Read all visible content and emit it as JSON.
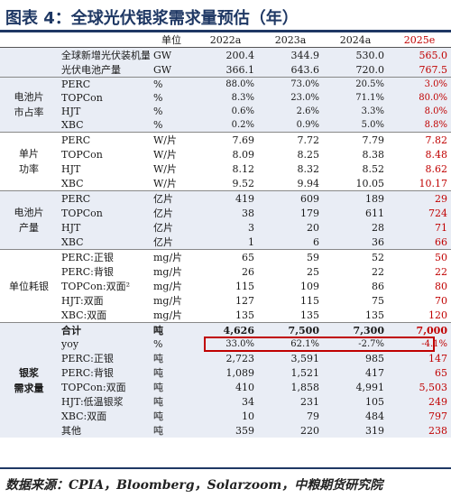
{
  "title": "图表 4：全球光伏银浆需求量预估（年）",
  "header": {
    "col0": "",
    "col1": "",
    "unit": "单位",
    "y1": "2022a",
    "y2": "2023a",
    "y3": "2024a",
    "y4": "2025e"
  },
  "rows": [
    {
      "group": "",
      "item": "全球新增光伏装机量¹",
      "unit": "GW",
      "v": [
        "200.4",
        "344.9",
        "530.0",
        "565.0"
      ]
    },
    {
      "group": "",
      "item": "光伏电池产量",
      "unit": "GW",
      "v": [
        "366.1",
        "643.6",
        "720.0",
        "767.5"
      ]
    },
    {
      "group": "电池片\n市占率",
      "item": "PERC",
      "unit": "%",
      "v": [
        "88.0%",
        "73.0%",
        "20.5%",
        "3.0%"
      ],
      "small": true
    },
    {
      "group": "",
      "item": "TOPCon",
      "unit": "%",
      "v": [
        "8.3%",
        "23.0%",
        "71.1%",
        "80.0%"
      ],
      "small": true
    },
    {
      "group": "",
      "item": "HJT",
      "unit": "%",
      "v": [
        "0.6%",
        "2.6%",
        "3.3%",
        "8.0%"
      ],
      "small": true
    },
    {
      "group": "",
      "item": "XBC",
      "unit": "%",
      "v": [
        "0.2%",
        "0.9%",
        "5.0%",
        "8.8%"
      ],
      "small": true
    },
    {
      "group": "单片\n功率",
      "item": "PERC",
      "unit": "W/片",
      "v": [
        "7.69",
        "7.72",
        "7.79",
        "7.82"
      ]
    },
    {
      "group": "",
      "item": "TOPCon",
      "unit": "W/片",
      "v": [
        "8.09",
        "8.25",
        "8.38",
        "8.48"
      ]
    },
    {
      "group": "",
      "item": "HJT",
      "unit": "W/片",
      "v": [
        "8.12",
        "8.32",
        "8.52",
        "8.62"
      ]
    },
    {
      "group": "",
      "item": "XBC",
      "unit": "W/片",
      "v": [
        "9.52",
        "9.94",
        "10.05",
        "10.17"
      ]
    },
    {
      "group": "电池片\n产量",
      "item": "PERC",
      "unit": "亿片",
      "v": [
        "419",
        "609",
        "189",
        "29"
      ]
    },
    {
      "group": "",
      "item": "TOPCon",
      "unit": "亿片",
      "v": [
        "38",
        "179",
        "611",
        "724"
      ]
    },
    {
      "group": "",
      "item": "HJT",
      "unit": "亿片",
      "v": [
        "3",
        "20",
        "28",
        "71"
      ]
    },
    {
      "group": "",
      "item": "XBC",
      "unit": "亿片",
      "v": [
        "1",
        "6",
        "36",
        "66"
      ]
    },
    {
      "group": "单位耗银",
      "item": "PERC:正银",
      "unit": "mg/片",
      "v": [
        "65",
        "59",
        "52",
        "50"
      ]
    },
    {
      "group": "",
      "item": "PERC:背银",
      "unit": "mg/片",
      "v": [
        "26",
        "25",
        "22",
        "22"
      ]
    },
    {
      "group": "",
      "item": "TOPCon:双面²",
      "unit": "mg/片",
      "v": [
        "115",
        "109",
        "86",
        "80"
      ]
    },
    {
      "group": "",
      "item": "HJT:双面",
      "unit": "mg/片",
      "v": [
        "127",
        "115",
        "75",
        "70"
      ]
    },
    {
      "group": "",
      "item": "XBC:双面",
      "unit": "mg/片",
      "v": [
        "135",
        "135",
        "135",
        "120"
      ]
    },
    {
      "group": "银浆\n需求量",
      "item": "合计",
      "unit": "吨",
      "v": [
        "4,626",
        "7,500",
        "7,300",
        "7,000"
      ],
      "bold": true
    },
    {
      "group": "",
      "item": "yoy",
      "unit": "%",
      "v": [
        "33.0%",
        "62.1%",
        "-2.7%",
        "-4.1%"
      ],
      "small": true,
      "yoy": true
    },
    {
      "group": "",
      "item": "PERC:正银",
      "unit": "吨",
      "v": [
        "2,723",
        "3,591",
        "985",
        "147"
      ]
    },
    {
      "group": "",
      "item": "PERC:背银",
      "unit": "吨",
      "v": [
        "1,089",
        "1,521",
        "417",
        "65"
      ]
    },
    {
      "group": "",
      "item": "TOPCon:双面",
      "unit": "吨",
      "v": [
        "410",
        "1,858",
        "4,991",
        "5,503"
      ]
    },
    {
      "group": "",
      "item": "HJT:低温银浆",
      "unit": "吨",
      "v": [
        "34",
        "231",
        "105",
        "249"
      ]
    },
    {
      "group": "",
      "item": "XBC:双面",
      "unit": "吨",
      "v": [
        "10",
        "79",
        "484",
        "797"
      ]
    },
    {
      "group": "",
      "item": "其他",
      "unit": "吨",
      "v": [
        "359",
        "220",
        "319",
        "238"
      ]
    }
  ],
  "source": "数据来源：CPIA，Bloomberg，Solarzoom，中粮期货研究院",
  "colors": {
    "title": "#1f3864",
    "accent": "#c00000",
    "band": "#e9edf5"
  }
}
